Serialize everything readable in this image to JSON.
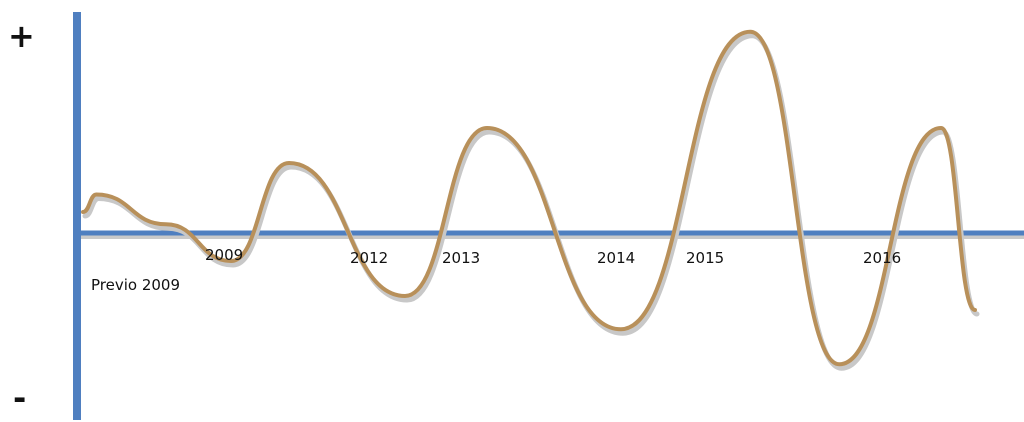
{
  "chart_data": {
    "type": "line",
    "title": "",
    "xlabel": "",
    "ylabel": "",
    "y_axis": {
      "top_label": "+",
      "bottom_label": "-"
    },
    "tick_labels": [
      "Previo 2009",
      "2009",
      "2012",
      "2013",
      "2014",
      "2015",
      "2016"
    ],
    "series": [
      {
        "values": [
          0.22,
          0.05,
          -0.16,
          0.4,
          -0.36,
          0.6,
          -0.55,
          1.15,
          -0.75,
          0.6,
          -0.44
        ]
      }
    ],
    "ylim": [
      -1.0,
      1.25
    ],
    "grid": false,
    "colors": {
      "axis": "#4f7fc0",
      "axis_shadow": "#c9c9c9",
      "curve": "#b8905a",
      "curve_shadow": "#c8c8c8"
    }
  }
}
